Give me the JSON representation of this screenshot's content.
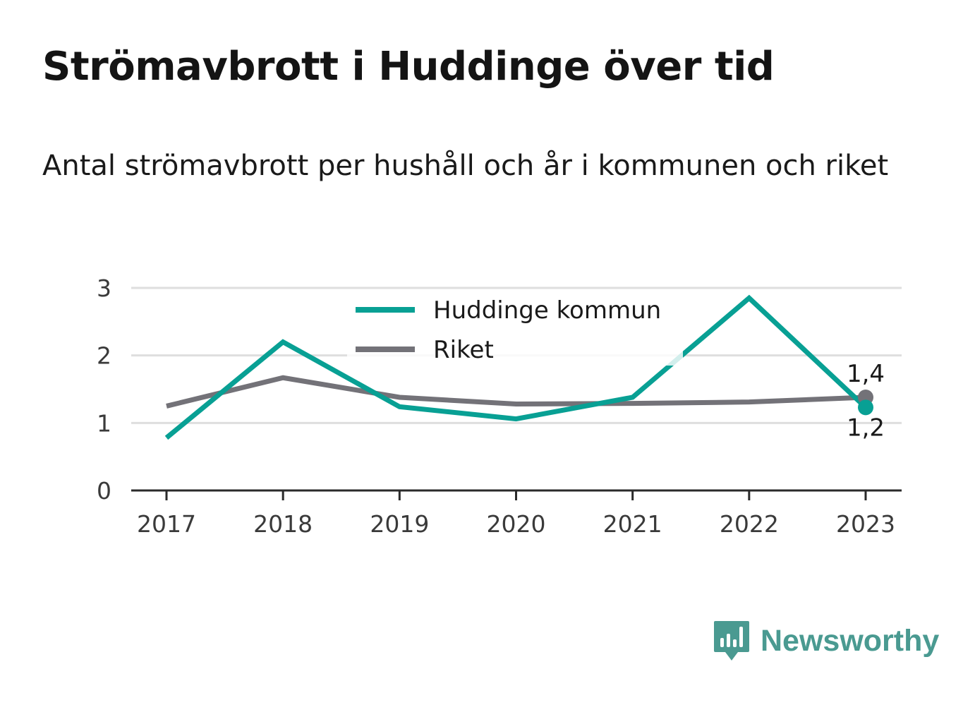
{
  "header": {
    "title": "Strömavbrott i Huddinge över tid",
    "subtitle": "Antal strömavbrott per hushåll och år i kommunen och riket"
  },
  "brand": {
    "name": "Newsworthy",
    "icon": "bar-chart-badge-icon",
    "color": "#4a9a91"
  },
  "chart_data": {
    "type": "line",
    "title": "",
    "xlabel": "",
    "ylabel": "",
    "x": [
      "2017",
      "2018",
      "2019",
      "2020",
      "2021",
      "2022",
      "2023"
    ],
    "ylim": [
      0,
      3
    ],
    "yticks": [
      "0",
      "1",
      "2",
      "3"
    ],
    "grid": true,
    "legend_position": "top-center",
    "series": [
      {
        "name": "Huddinge kommun",
        "color": "#08a094",
        "values": [
          0.78,
          2.2,
          1.24,
          1.06,
          1.38,
          2.85,
          1.23
        ],
        "end_label": "1,2"
      },
      {
        "name": "Riket",
        "color": "#737278",
        "values": [
          1.25,
          1.67,
          1.38,
          1.28,
          1.29,
          1.31,
          1.38
        ],
        "end_label": "1,4"
      }
    ]
  }
}
